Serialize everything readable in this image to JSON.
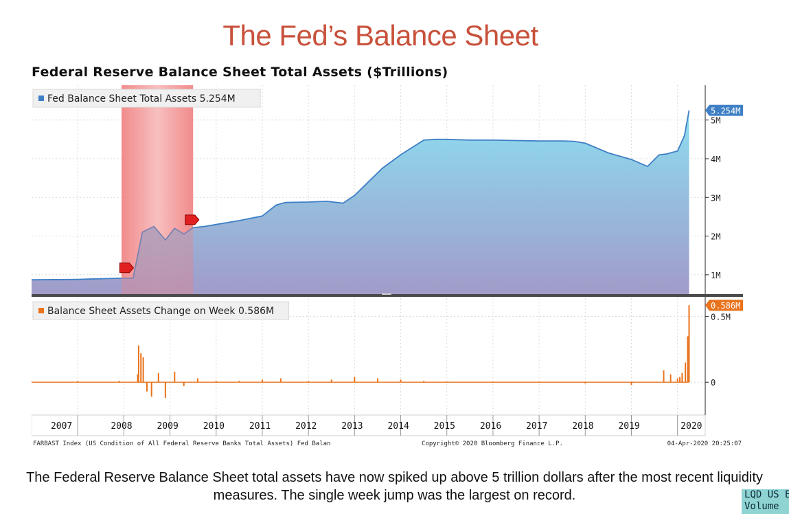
{
  "slide_title": "The Fed’s Balance Sheet",
  "caption": "The Federal Reserve Balance Sheet total assets have now spiked up above 5 trillion dollars after the most recent liquidity measures. The single week jump was the largest on record.",
  "ticker": {
    "line1": "LQD US E",
    "line2": "Volume"
  },
  "chart_data": {
    "title": "Federal Reserve Balance Sheet Total Assets ($Trillions)",
    "footer_left": "FARBAST Index (US Condition of All Federal Reserve Banks Total Assets) Fed Balan",
    "footer_center": "Copyright© 2020 Bloomberg Finance L.P.",
    "footer_right": "04-Apr-2020 20:25:07",
    "x_tick_labels": [
      "2007",
      "2008",
      "2009",
      "2010",
      "2011",
      "2012",
      "2013",
      "2014",
      "2015",
      "2016",
      "2017",
      "2018",
      "2019",
      "2020"
    ],
    "recession_shading": {
      "start": 2007.95,
      "end": 2009.5
    },
    "colors": {
      "area_top": "#86dcef",
      "area_bottom": "#9c96c6",
      "line": "#3e7fc6",
      "change": "#e8731c",
      "recession": "#f08a8a",
      "divider": "#4a4a4a"
    },
    "panels": [
      {
        "type": "area",
        "legend": "Fed Balance Sheet Total Assets 5.254M",
        "last_value_label": "5.254M",
        "unit": "trillions USD (axis labelled M)",
        "ylim": [
          0.5,
          5.9
        ],
        "y_tick_labels": [
          "1M",
          "2M",
          "3M",
          "4M",
          "5M"
        ],
        "y_ticks": [
          1,
          2,
          3,
          4,
          5
        ],
        "x": [
          2006.0,
          2007.0,
          2007.9,
          2008.2,
          2008.4,
          2008.65,
          2008.9,
          2009.1,
          2009.3,
          2009.5,
          2009.75,
          2010.0,
          2010.5,
          2011.0,
          2011.3,
          2011.5,
          2012.0,
          2012.4,
          2012.75,
          2013.0,
          2013.3,
          2013.6,
          2014.0,
          2014.5,
          2014.75,
          2015.0,
          2015.5,
          2016.0,
          2016.5,
          2017.0,
          2017.5,
          2017.75,
          2018.0,
          2018.5,
          2019.0,
          2019.35,
          2019.6,
          2019.75,
          2020.0,
          2020.15,
          2020.25
        ],
        "y": [
          0.87,
          0.88,
          0.91,
          0.91,
          2.1,
          2.25,
          1.9,
          2.2,
          2.05,
          2.22,
          2.25,
          2.3,
          2.4,
          2.52,
          2.8,
          2.87,
          2.88,
          2.9,
          2.85,
          3.05,
          3.4,
          3.75,
          4.1,
          4.48,
          4.5,
          4.5,
          4.48,
          4.48,
          4.47,
          4.46,
          4.46,
          4.45,
          4.4,
          4.15,
          3.98,
          3.8,
          4.1,
          4.12,
          4.2,
          4.6,
          5.25
        ]
      },
      {
        "type": "bar",
        "legend": "Balance Sheet Assets Change on Week 0.586M",
        "last_value_label": "0.586M",
        "unit": "trillions USD (axis labelled M)",
        "ylim": [
          -0.25,
          0.65
        ],
        "y_tick_labels": [
          "0",
          "0.5M"
        ],
        "y_ticks": [
          0,
          0.5
        ],
        "weekly_changes": {
          "x": [
            2006.0,
            2007.0,
            2007.9,
            2008.3,
            2008.32,
            2008.37,
            2008.42,
            2008.5,
            2008.6,
            2008.75,
            2008.9,
            2009.1,
            2009.3,
            2009.6,
            2010.0,
            2010.5,
            2011.0,
            2011.4,
            2012.0,
            2012.5,
            2013.0,
            2013.5,
            2014.0,
            2014.5,
            2015.0,
            2016.0,
            2017.0,
            2018.0,
            2019.0,
            2019.7,
            2019.85,
            2020.0,
            2020.05,
            2020.1,
            2020.17,
            2020.22,
            2020.25
          ],
          "y": [
            0.005,
            0.01,
            0.01,
            0.06,
            0.28,
            0.22,
            0.19,
            -0.07,
            -0.11,
            0.07,
            -0.12,
            0.08,
            -0.03,
            0.03,
            0.01,
            0.01,
            0.02,
            0.03,
            0.01,
            0.02,
            0.04,
            0.03,
            0.02,
            0.01,
            0.005,
            0.005,
            0.005,
            -0.01,
            -0.02,
            0.09,
            0.06,
            0.03,
            0.04,
            0.07,
            0.15,
            0.35,
            0.586
          ]
        }
      }
    ]
  }
}
